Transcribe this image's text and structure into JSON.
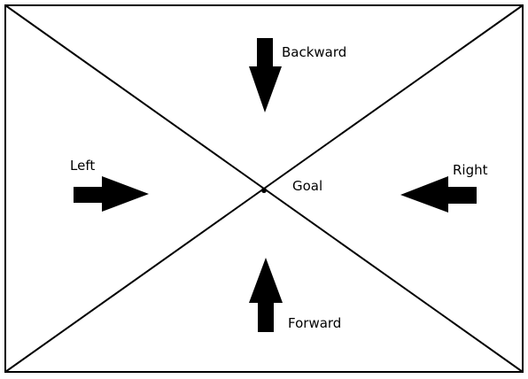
{
  "diagram": {
    "labels": {
      "backward": "Backward",
      "left": "Left",
      "goal": "Goal",
      "right": "Right",
      "forward": "Forward"
    },
    "colors": {
      "line": "#000000",
      "arrow": "#000000",
      "background": "#ffffff"
    }
  }
}
